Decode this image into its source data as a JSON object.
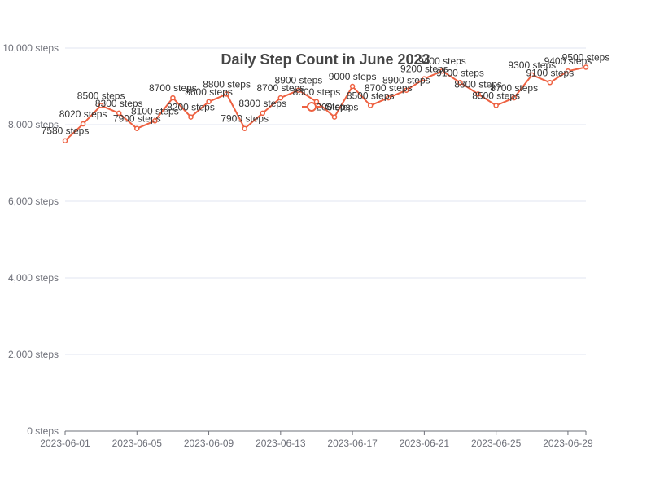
{
  "chart_data": {
    "type": "line",
    "title": "Daily Step Count in June 2023",
    "xlabel": "",
    "ylabel": "",
    "ylim": [
      0,
      10000
    ],
    "y_ticks": [
      "0 steps",
      "2,000 steps",
      "4,000 steps",
      "6,000 steps",
      "8,000 steps",
      "10,000 steps"
    ],
    "x_tick_labels": [
      "2023-06-01",
      "2023-06-05",
      "2023-06-09",
      "2023-06-13",
      "2023-06-17",
      "2023-06-21",
      "2023-06-25",
      "2023-06-29"
    ],
    "grid": true,
    "legend_position": "center",
    "x": [
      "2023-06-01",
      "2023-06-02",
      "2023-06-03",
      "2023-06-04",
      "2023-06-05",
      "2023-06-06",
      "2023-06-07",
      "2023-06-08",
      "2023-06-09",
      "2023-06-10",
      "2023-06-11",
      "2023-06-12",
      "2023-06-13",
      "2023-06-14",
      "2023-06-15",
      "2023-06-16",
      "2023-06-17",
      "2023-06-18",
      "2023-06-19",
      "2023-06-20",
      "2023-06-21",
      "2023-06-22",
      "2023-06-23",
      "2023-06-24",
      "2023-06-25",
      "2023-06-26",
      "2023-06-27",
      "2023-06-28",
      "2023-06-29",
      "2023-06-30"
    ],
    "series": [
      {
        "name": "Steps",
        "color": "#ee6141",
        "values": [
          7580,
          8020,
          8500,
          8300,
          7900,
          8100,
          8700,
          8200,
          8600,
          8800,
          7900,
          8300,
          8700,
          8900,
          8600,
          8200,
          9000,
          8500,
          8700,
          8900,
          9200,
          9400,
          9100,
          8800,
          8500,
          8700,
          9300,
          9100,
          9400,
          9500
        ],
        "labels": [
          "7580 steps",
          "8020 steps",
          "8500 steps",
          "8300 steps",
          "7900 steps",
          "8100 steps",
          "8700 steps",
          "8200 steps",
          "8600 steps",
          "8800 steps",
          "7900 steps",
          "8300 steps",
          "8700 steps",
          "8900 steps",
          "8600 steps",
          "8200 steps",
          "9000 steps",
          "8500 steps",
          "8700 steps",
          "8900 steps",
          "9200 steps",
          "9400 steps",
          "9100 steps",
          "8800 steps",
          "8500 steps",
          "8700 steps",
          "9300 steps",
          "9100 steps",
          "9400 steps",
          "9500 steps"
        ]
      }
    ]
  }
}
